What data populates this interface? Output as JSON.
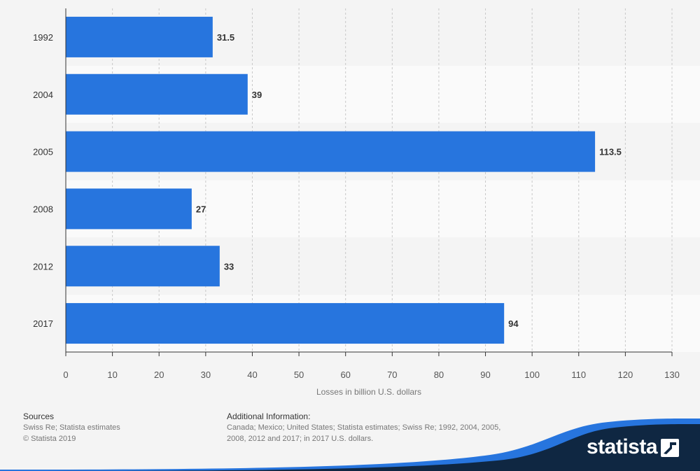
{
  "chart_data": {
    "type": "bar",
    "orientation": "horizontal",
    "categories": [
      "1992",
      "2004",
      "2005",
      "2008",
      "2012",
      "2017"
    ],
    "values": [
      31.5,
      39,
      113.5,
      27,
      33,
      94
    ],
    "value_labels": [
      "31.5",
      "39",
      "113.5",
      "27",
      "33",
      "94"
    ],
    "xlabel": "Losses in billion U.S. dollars",
    "xlim": [
      0,
      130
    ],
    "xticks": [
      0,
      10,
      20,
      30,
      40,
      50,
      60,
      70,
      80,
      90,
      100,
      110,
      120,
      130
    ],
    "grid": "vertical-dashed",
    "bar_color": "#2775de"
  },
  "footer": {
    "sources_title": "Sources",
    "sources_line1": "Swiss Re; Statista estimates",
    "sources_line2": "© Statista 2019",
    "additional_title": "Additional Information:",
    "additional_text": "Canada; Mexico; United States; Statista estimates; Swiss Re; 1992, 2004, 2005, 2008, 2012 and 2017; in 2017 U.S. dollars."
  },
  "brand": {
    "name": "statista",
    "icon": "statista-logo-icon",
    "color": "#0f2742",
    "accent": "#2775de"
  }
}
